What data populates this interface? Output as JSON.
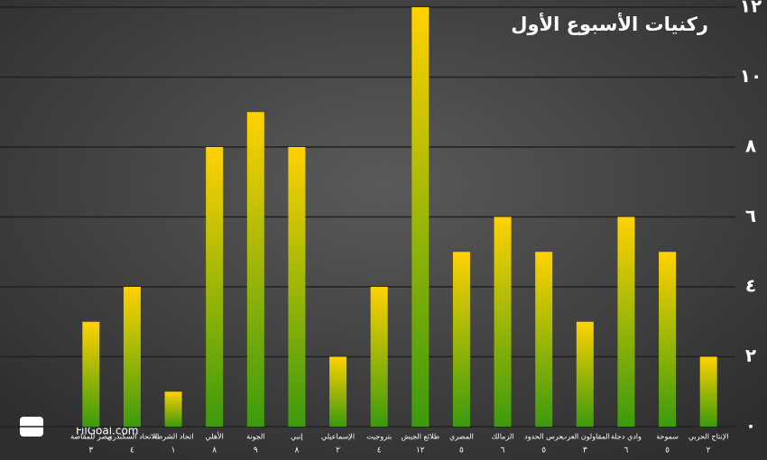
{
  "chart_data": {
    "type": "bar",
    "title": "ركنيات الأسبوع الأول",
    "watermark": "FilGoal.com",
    "categories": [
      "مصر للمقاصة",
      "الاتحاد السكندري",
      "اتحاد الشرطة",
      "الأهلي",
      "الجونة",
      "إنبي",
      "الإسماعيلي",
      "بتروجيت",
      "طلائع الجيش",
      "المصري",
      "الزمالك",
      "حرس الحدود",
      "المقاولون العرب",
      "وادي دجلة",
      "سموحة",
      "الإنتاج الحربي"
    ],
    "values": [
      3,
      4,
      1,
      8,
      9,
      8,
      2,
      4,
      12,
      5,
      6,
      5,
      3,
      6,
      5,
      2
    ],
    "value_labels": [
      "٣",
      "٤",
      "١",
      "٨",
      "٩",
      "٨",
      "٢",
      "٤",
      "١٢",
      "٥",
      "٦",
      "٥",
      "٣",
      "٦",
      "٥",
      "٢"
    ],
    "color": [
      "#ffd200",
      "#3c9a0e"
    ],
    "ylim": [
      0,
      12
    ],
    "yticks": [
      {
        "value": 0,
        "label": "٠"
      },
      {
        "value": 2,
        "label": "٢"
      },
      {
        "value": 4,
        "label": "٤"
      },
      {
        "value": 6,
        "label": "٦"
      },
      {
        "value": 8,
        "label": "٨"
      },
      {
        "value": 10,
        "label": "١٠"
      },
      {
        "value": 12,
        "label": "١٢"
      }
    ],
    "grid": true
  }
}
